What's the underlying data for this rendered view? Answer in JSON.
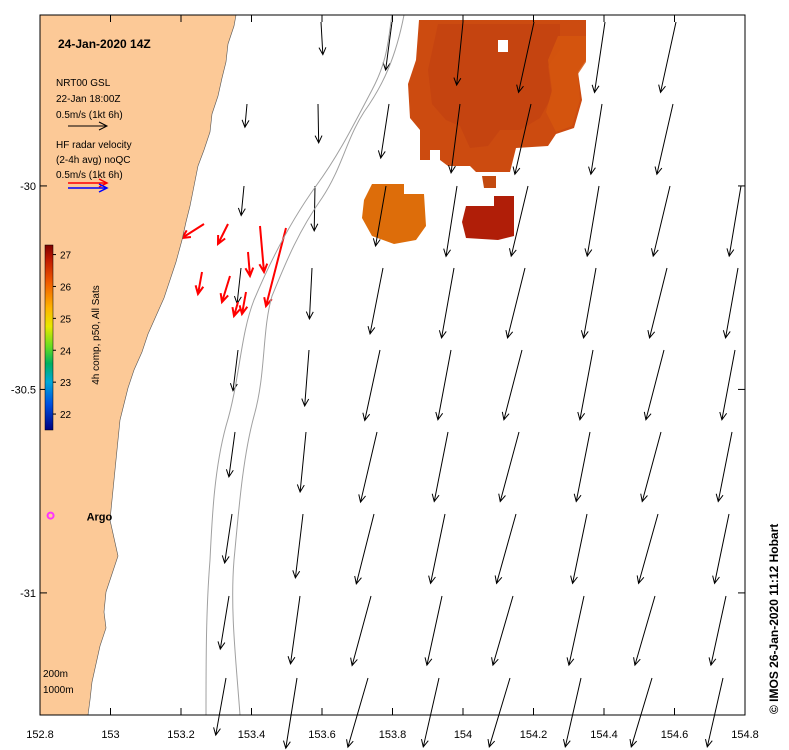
{
  "title": "24-Jan-2020 14Z",
  "credit": "© IMOS 26-Jan-2020 11:12 Hobart",
  "legend": {
    "model_line1": "NRT00 GSL",
    "model_line2": "22-Jan 18:00Z",
    "model_scale": "0.5m/s (1kt 6h)",
    "radar_line1": "HF radar velocity",
    "radar_line2": "(2-4h avg) noQC",
    "radar_scale": "0.5m/s (1kt 6h)"
  },
  "colorbar": {
    "label": "4h comp, p50, All Sats",
    "ticks": [
      "27",
      "26",
      "25",
      "24",
      "23",
      "22"
    ],
    "min": 21.5,
    "max": 27.3
  },
  "argo": {
    "label": "Argo",
    "lon": 152.83,
    "lat": -30.81,
    "color": "#ff33ff"
  },
  "isobaths": [
    "200m",
    "1000m"
  ],
  "axes": {
    "x_ticks": [
      "152.8",
      "153",
      "153.2",
      "153.4",
      "153.6",
      "153.8",
      "154",
      "154.2",
      "154.4",
      "154.6",
      "154.8"
    ],
    "y_ticks": [
      "-30",
      "-30.5",
      "-31"
    ],
    "lon_range": [
      152.8,
      154.8
    ],
    "lat_range": [
      -31.3,
      -29.58
    ]
  },
  "colors": {
    "land": "#fcc997",
    "ocean": "#ffffff",
    "radar_arrow": "#ff0000",
    "radar_legend_blue": "#0000ff",
    "isobath": "#a0a0a0",
    "sst_warm": "#cc4b10",
    "sst_orange": "#dd6d0a",
    "sst_dark": "#b01e08"
  }
}
